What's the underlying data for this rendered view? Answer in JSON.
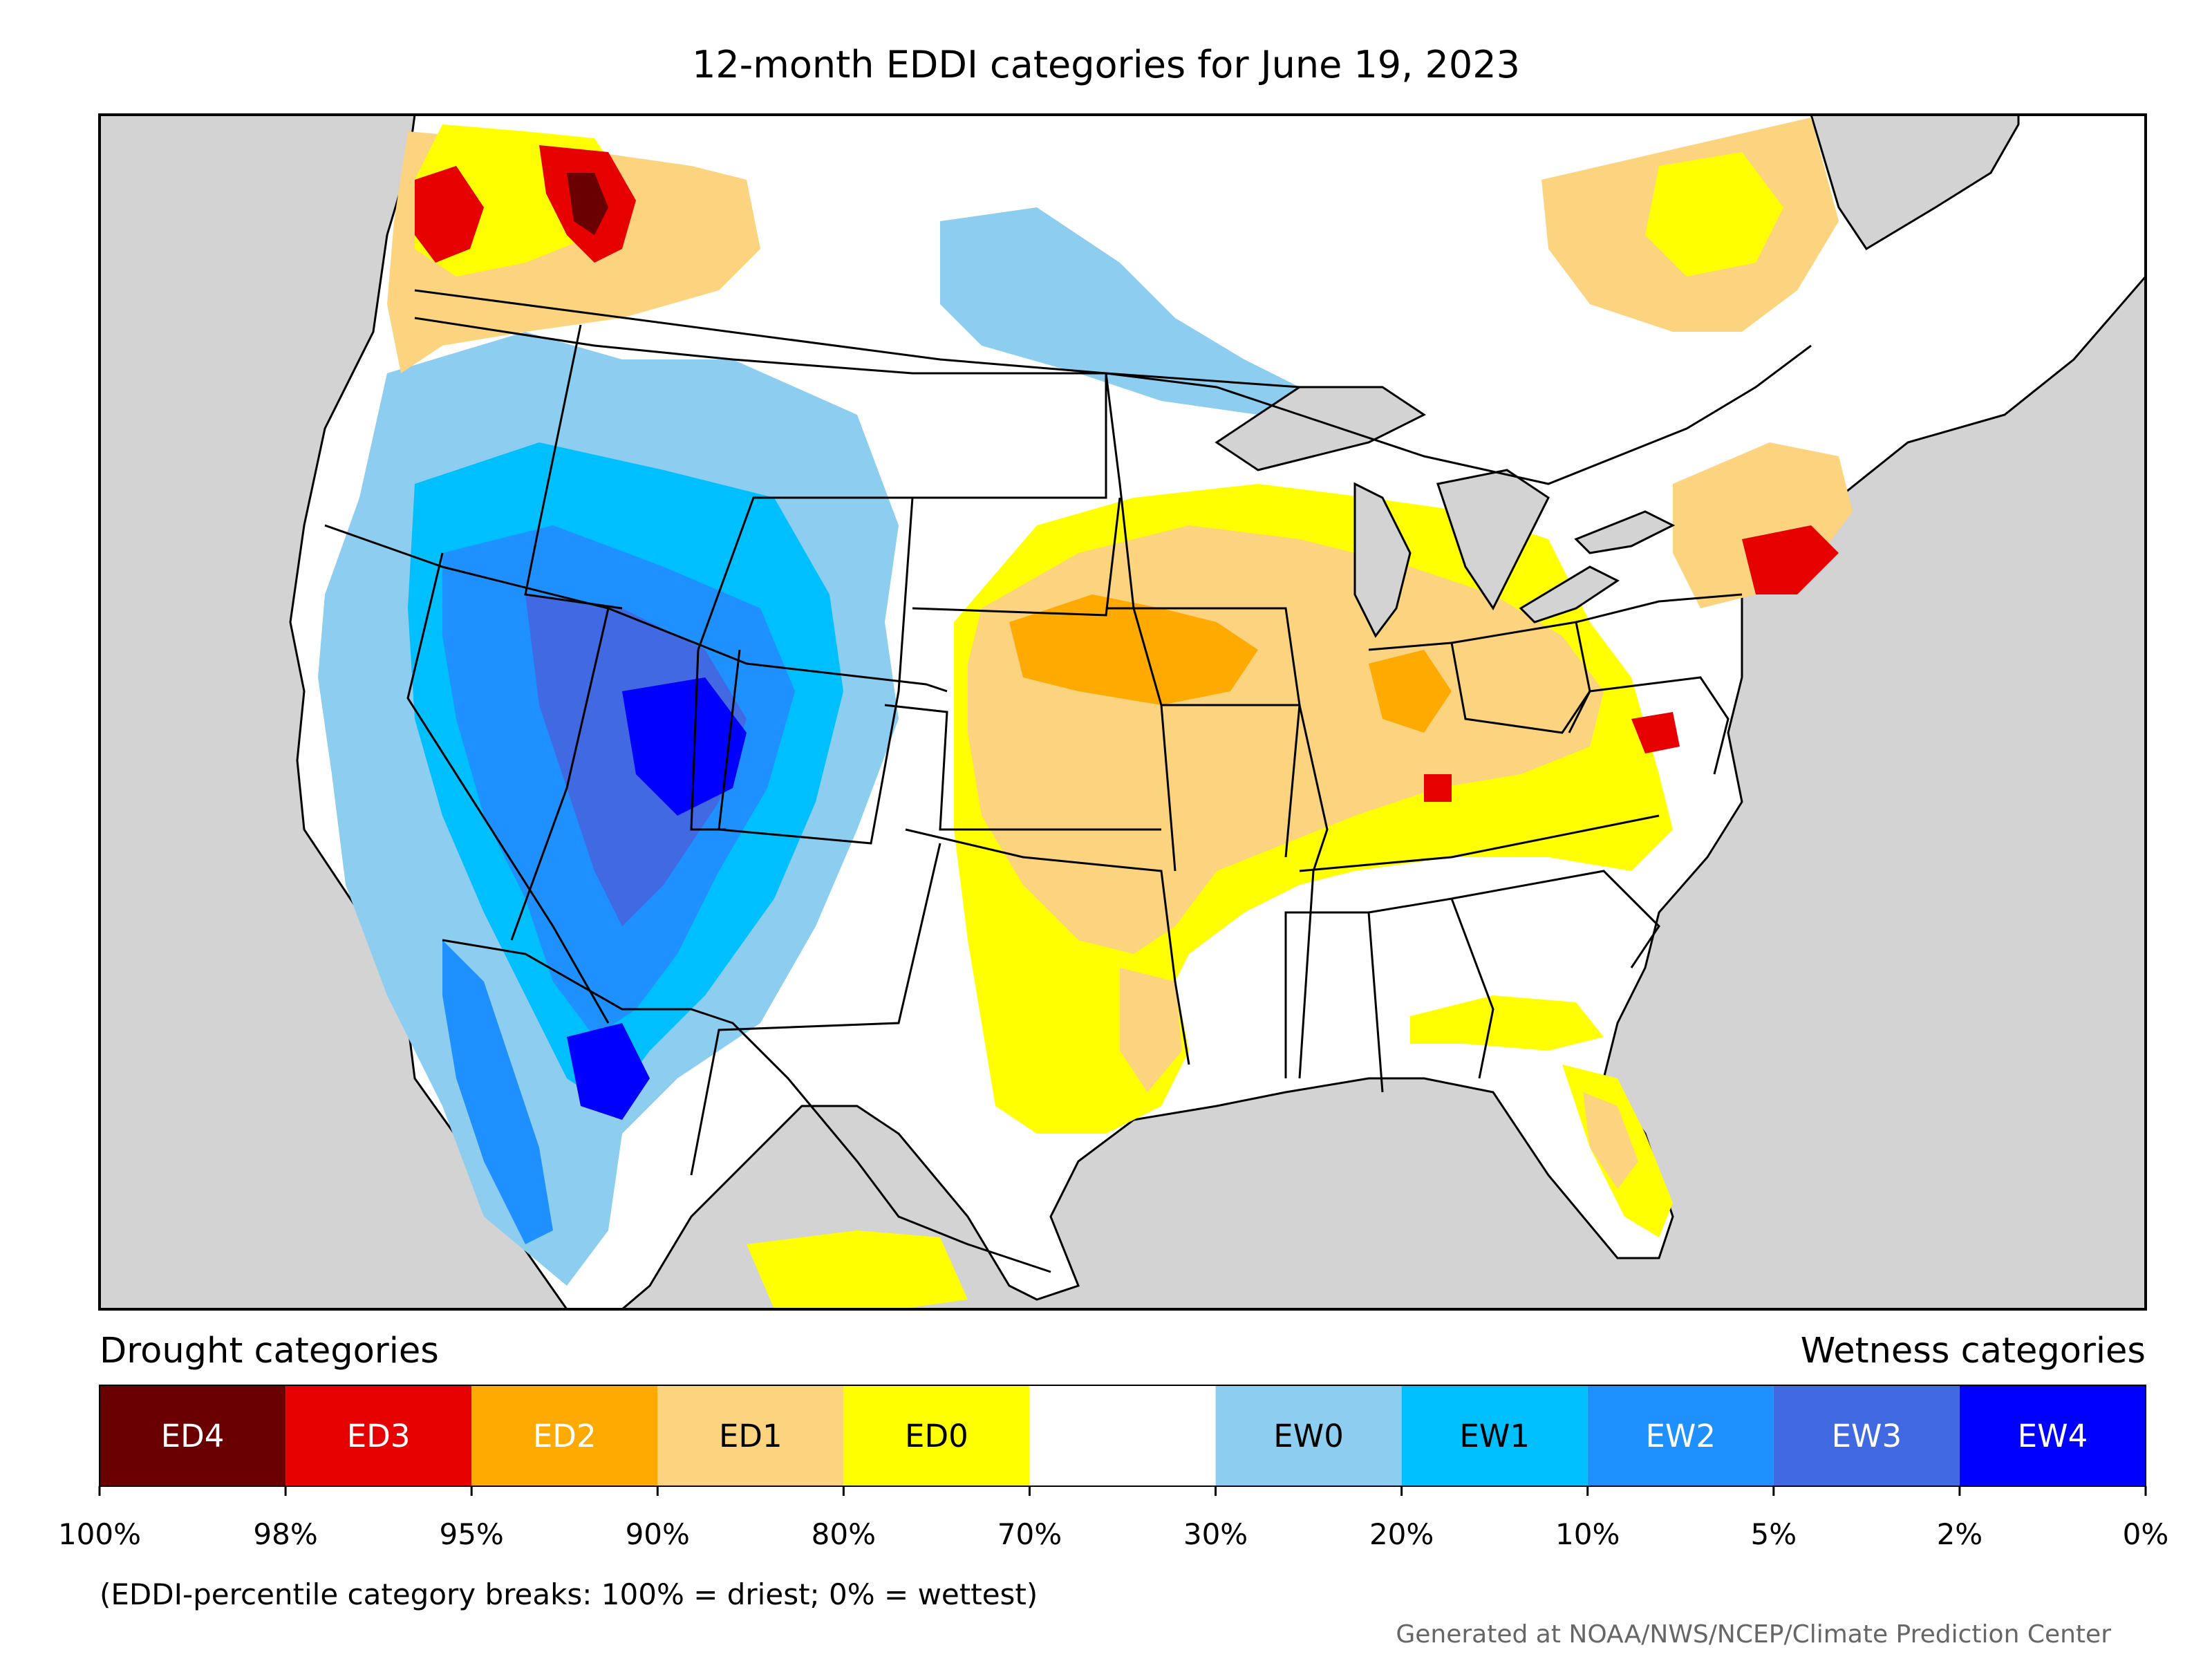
{
  "title": "12-month EDDI categories for June 19, 2023",
  "legend": {
    "drought_heading": "Drought categories",
    "wetness_heading": "Wetness categories",
    "categories": [
      {
        "label": "ED4",
        "color": "#6b0000",
        "text_color": "#ffffff"
      },
      {
        "label": "ED3",
        "color": "#e60000",
        "text_color": "#ffffff"
      },
      {
        "label": "ED2",
        "color": "#ffaa00",
        "text_color": "#ffffff"
      },
      {
        "label": "ED1",
        "color": "#fcd37f",
        "text_color": "#000000"
      },
      {
        "label": "ED0",
        "color": "#ffff00",
        "text_color": "#000000"
      },
      {
        "label": "",
        "color": "#ffffff",
        "text_color": "#000000"
      },
      {
        "label": "EW0",
        "color": "#8ccdf0",
        "text_color": "#000000"
      },
      {
        "label": "EW1",
        "color": "#00bfff",
        "text_color": "#000000"
      },
      {
        "label": "EW2",
        "color": "#1e90ff",
        "text_color": "#ffffff"
      },
      {
        "label": "EW3",
        "color": "#4169e1",
        "text_color": "#ffffff"
      },
      {
        "label": "EW4",
        "color": "#0000ff",
        "text_color": "#ffffff"
      }
    ],
    "ticks": [
      "100%",
      "98%",
      "95%",
      "90%",
      "80%",
      "70%",
      "30%",
      "20%",
      "10%",
      "5%",
      "2%",
      "0%"
    ]
  },
  "note": "(EDDI-percentile category breaks: 100% = driest; 0% = wettest)",
  "credit": "Generated at NOAA/NWS/NCEP/Climate Prediction Center",
  "colors": {
    "ocean": "#d3d3d3",
    "land": "#ffffff",
    "border": "#000000"
  }
}
